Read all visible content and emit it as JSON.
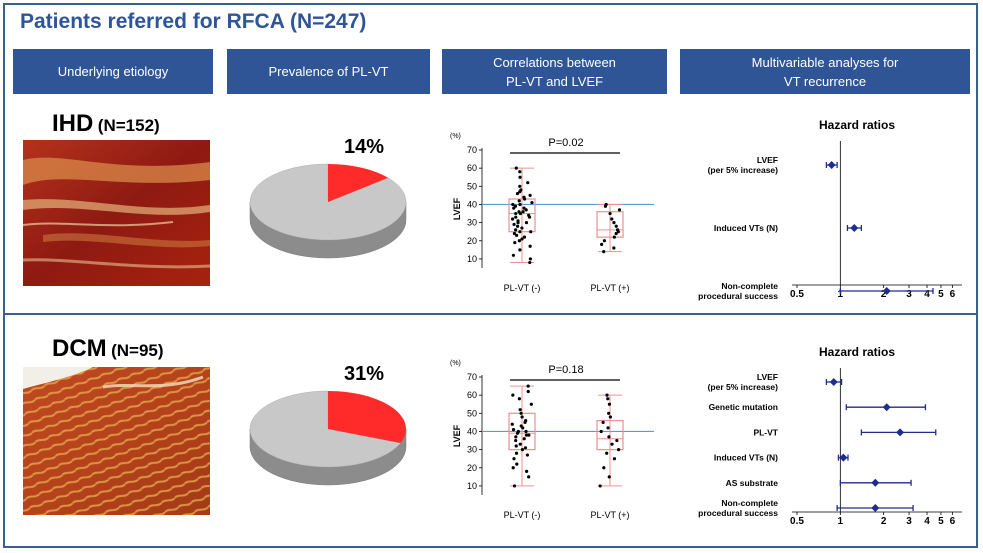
{
  "title": "Patients referred for RFCA (N=247)",
  "headers": [
    "Underlying etiology",
    "Prevalence of PL-VT",
    "Correlations between\nPL-VT and LVEF",
    "Multivariable analyses for\nVT recurrence"
  ],
  "colors": {
    "header_bg": "#2f5597",
    "pie_gray": "#c8c8c8",
    "pie_red": "#ff2a2a",
    "box_red": "#f09090",
    "blue_line": "#5b9bd5",
    "navy": "#1f2d8f"
  },
  "rows": [
    {
      "etiology": "IHD",
      "n": "(N=152)",
      "prevalence": "14%",
      "chart_data": [
        {
          "type": "pie",
          "title": "Prevalence of PL-VT",
          "values": [
            86,
            14
          ],
          "labels": [
            "PL-VT (-)",
            "PL-VT (+)"
          ]
        },
        {
          "type": "scatter",
          "title": "Correlations between PL-VT and LVEF",
          "pvalue": "P=0.02",
          "ylabel": "LVEF",
          "yunit": "(%)",
          "ylim": [
            5,
            70
          ],
          "yticks": [
            "10",
            "20",
            "30",
            "40",
            "50",
            "60",
            "70"
          ],
          "categories": [
            "PL-VT (-)",
            "PL-VT (+)"
          ],
          "reference_line": 40,
          "boxes": [
            {
              "min": 8,
              "q1": 25,
              "median": 35,
              "q3": 43,
              "max": 60
            },
            {
              "min": 14,
              "q1": 22,
              "median": 26,
              "q3": 36,
              "max": 40
            }
          ],
          "points": [
            [
              8,
              10,
              12,
              15,
              17,
              19,
              20,
              21,
              22,
              23,
              24,
              25,
              25,
              26,
              27,
              28,
              29,
              30,
              30,
              31,
              32,
              33,
              33,
              34,
              35,
              35,
              36,
              36,
              37,
              38,
              38,
              39,
              40,
              40,
              41,
              42,
              43,
              44,
              45,
              46,
              47,
              48,
              50,
              52,
              55,
              58,
              60
            ],
            [
              14,
              16,
              18,
              20,
              22,
              24,
              25,
              26,
              28,
              30,
              32,
              35,
              37,
              39,
              40
            ]
          ]
        },
        {
          "type": "forest",
          "title": "Hazard ratios",
          "xscale": "log",
          "xticks": [
            "0.5",
            "1",
            "2",
            "3",
            "4",
            "5",
            "6"
          ],
          "items": [
            {
              "label": [
                "LVEF",
                "(per 5% increase)"
              ],
              "hr": 0.87,
              "lo": 0.8,
              "hi": 0.95
            },
            {
              "label": [
                "Induced VTs (N)"
              ],
              "hr": 1.25,
              "lo": 1.12,
              "hi": 1.4
            },
            {
              "label": [
                "Non-complete",
                "procedural success"
              ],
              "hr": 2.1,
              "lo": 1.0,
              "hi": 4.4
            }
          ]
        }
      ]
    },
    {
      "etiology": "DCM",
      "n": "(N=95)",
      "prevalence": "31%",
      "chart_data": [
        {
          "type": "pie",
          "title": "Prevalence of PL-VT",
          "values": [
            69,
            31
          ],
          "labels": [
            "PL-VT (-)",
            "PL-VT (+)"
          ]
        },
        {
          "type": "scatter",
          "title": "Correlations between PL-VT and LVEF",
          "pvalue": "P=0.18",
          "ylabel": "LVEF",
          "yunit": "(%)",
          "ylim": [
            5,
            70
          ],
          "yticks": [
            "10",
            "20",
            "30",
            "40",
            "50",
            "60",
            "70"
          ],
          "categories": [
            "PL-VT (-)",
            "PL-VT (+)"
          ],
          "reference_line": 40,
          "boxes": [
            {
              "min": 10,
              "q1": 30,
              "median": 39,
              "q3": 50,
              "max": 65
            },
            {
              "min": 10,
              "q1": 30,
              "median": 36,
              "q3": 46,
              "max": 60
            }
          ],
          "points": [
            [
              10,
              15,
              18,
              20,
              22,
              25,
              27,
              28,
              30,
              31,
              32,
              33,
              35,
              36,
              37,
              38,
              38,
              39,
              40,
              40,
              41,
              42,
              43,
              44,
              45,
              46,
              48,
              50,
              52,
              55,
              58,
              60,
              62,
              65
            ],
            [
              10,
              15,
              20,
              25,
              28,
              30,
              33,
              35,
              37,
              40,
              42,
              45,
              48,
              50,
              55,
              58,
              60
            ]
          ]
        },
        {
          "type": "forest",
          "title": "Hazard ratios",
          "xscale": "log",
          "xticks": [
            "0.5",
            "1",
            "2",
            "3",
            "4",
            "5",
            "6"
          ],
          "items": [
            {
              "label": [
                "LVEF",
                "(per 5% increase)"
              ],
              "hr": 0.9,
              "lo": 0.8,
              "hi": 1.02
            },
            {
              "label": [
                "Genetic mutation"
              ],
              "hr": 2.1,
              "lo": 1.1,
              "hi": 3.9
            },
            {
              "label": [
                "PL-VT"
              ],
              "hr": 2.6,
              "lo": 1.4,
              "hi": 4.6
            },
            {
              "label": [
                "Induced VTs (N)"
              ],
              "hr": 1.05,
              "lo": 0.97,
              "hi": 1.13
            },
            {
              "label": [
                "AS substrate"
              ],
              "hr": 1.75,
              "lo": 1.0,
              "hi": 3.1
            },
            {
              "label": [
                "Non-complete",
                "procedural success"
              ],
              "hr": 1.75,
              "lo": 0.95,
              "hi": 3.2
            }
          ]
        }
      ]
    }
  ]
}
